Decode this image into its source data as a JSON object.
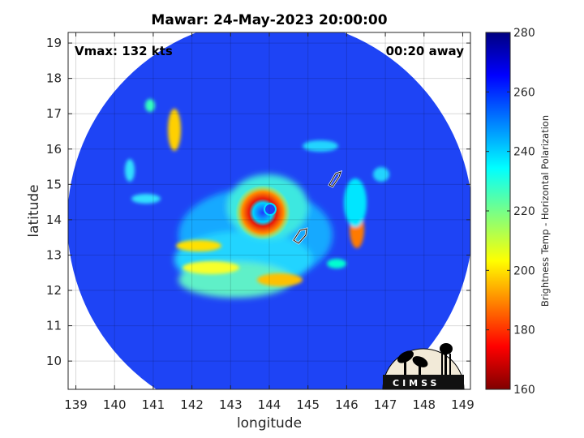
{
  "chart_data": {
    "type": "heatmap",
    "title": "Mawar: 24-May-2023 20:00:00",
    "xlabel": "longitude",
    "ylabel": "latitude",
    "xlim": [
      138.8,
      149.2
    ],
    "ylim": [
      9.2,
      19.3
    ],
    "xticks": [
      139,
      140,
      141,
      142,
      143,
      144,
      145,
      146,
      147,
      148,
      149
    ],
    "yticks": [
      10,
      11,
      12,
      13,
      14,
      15,
      16,
      17,
      18,
      19
    ],
    "grid": true,
    "annotations": {
      "vmax": "Vmax: 132 kts",
      "time_offset": "00:20 away"
    },
    "storm_center": {
      "lon": 144.0,
      "lat": 14.2
    },
    "swath": {
      "center_lon": 143.8,
      "center_lat": 14.2,
      "radius_deg": 5.2
    },
    "colorbar": {
      "label": "Brightness Temp - Horizontal Polarization",
      "min": 160,
      "max": 280,
      "ticks": [
        160,
        180,
        200,
        220,
        240,
        260,
        280
      ],
      "colormap": "jet_reversed"
    },
    "logo": "CIMSS"
  },
  "colors": {
    "background_cold": "#1e3cff",
    "eyewall": "#e81a0a",
    "eye": "#2a55ff",
    "land_outline": "#ffffff"
  }
}
